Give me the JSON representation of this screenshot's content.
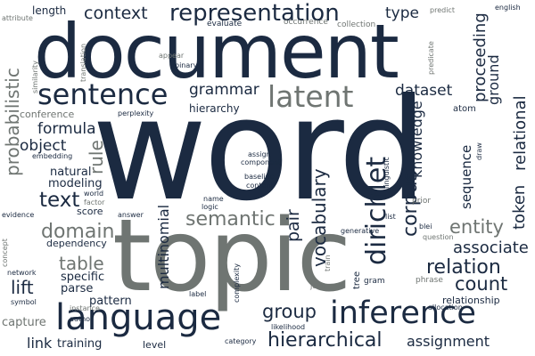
{
  "colors": {
    "dark": "#1b2a41",
    "gray": "#6f7572",
    "background": "#ffffff"
  },
  "words": [
    {
      "text": "word",
      "tone": "dark"
    },
    {
      "text": "topic",
      "tone": "gray"
    },
    {
      "text": "document",
      "tone": "dark"
    },
    {
      "text": "language",
      "tone": "dark"
    },
    {
      "text": "inference",
      "tone": "dark"
    },
    {
      "text": "sentence",
      "tone": "dark"
    },
    {
      "text": "representation",
      "tone": "dark"
    },
    {
      "text": "latent",
      "tone": "gray"
    },
    {
      "text": "dirichlet",
      "tone": "dark"
    },
    {
      "text": "semantic",
      "tone": "gray"
    },
    {
      "text": "hierarchical",
      "tone": "dark"
    },
    {
      "text": "relation",
      "tone": "dark"
    },
    {
      "text": "text",
      "tone": "dark"
    },
    {
      "text": "corpus",
      "tone": "dark"
    },
    {
      "text": "probabilistic",
      "tone": "gray"
    },
    {
      "text": "domain",
      "tone": "gray"
    },
    {
      "text": "vocabulary",
      "tone": "dark"
    },
    {
      "text": "group",
      "tone": "dark"
    },
    {
      "text": "entity",
      "tone": "gray"
    },
    {
      "text": "count",
      "tone": "dark"
    },
    {
      "text": "associate",
      "tone": "dark"
    },
    {
      "text": "context",
      "tone": "dark"
    },
    {
      "text": "dataset",
      "tone": "dark"
    },
    {
      "text": "grammar",
      "tone": "dark"
    },
    {
      "text": "table",
      "tone": "gray"
    },
    {
      "text": "type",
      "tone": "dark"
    },
    {
      "text": "lift",
      "tone": "dark"
    },
    {
      "text": "formula",
      "tone": "dark"
    },
    {
      "text": "object",
      "tone": "dark"
    },
    {
      "text": "rule",
      "tone": "gray"
    },
    {
      "text": "pair",
      "tone": "dark"
    },
    {
      "text": "token",
      "tone": "dark"
    },
    {
      "text": "relational",
      "tone": "dark"
    },
    {
      "text": "proceeding",
      "tone": "dark"
    },
    {
      "text": "ground",
      "tone": "dark"
    },
    {
      "text": "multinomial",
      "tone": "dark"
    },
    {
      "text": "knowledge",
      "tone": "dark"
    },
    {
      "text": "sequence",
      "tone": "dark"
    },
    {
      "text": "assignment",
      "tone": "dark"
    },
    {
      "text": "hierarchy",
      "tone": "dark"
    },
    {
      "text": "natural",
      "tone": "dark"
    },
    {
      "text": "modeling",
      "tone": "dark"
    },
    {
      "text": "specific",
      "tone": "dark"
    },
    {
      "text": "parse",
      "tone": "dark"
    },
    {
      "text": "pattern",
      "tone": "dark"
    },
    {
      "text": "training",
      "tone": "dark"
    },
    {
      "text": "link",
      "tone": "dark"
    },
    {
      "text": "capture",
      "tone": "gray"
    },
    {
      "text": "length",
      "tone": "dark"
    },
    {
      "text": "conference",
      "tone": "gray"
    },
    {
      "text": "dependency",
      "tone": "dark"
    },
    {
      "text": "score",
      "tone": "dark"
    },
    {
      "text": "relationship",
      "tone": "dark"
    },
    {
      "text": "level",
      "tone": "dark"
    },
    {
      "text": "perplexity",
      "tone": "dark"
    },
    {
      "text": "atom",
      "tone": "dark"
    },
    {
      "text": "evaluate",
      "tone": "dark"
    },
    {
      "text": "occurrence",
      "tone": "gray"
    },
    {
      "text": "collection",
      "tone": "gray"
    },
    {
      "text": "predict",
      "tone": "gray"
    },
    {
      "text": "english",
      "tone": "dark"
    },
    {
      "text": "appear",
      "tone": "gray"
    },
    {
      "text": "binary",
      "tone": "dark"
    },
    {
      "text": "attribute",
      "tone": "gray"
    },
    {
      "text": "similarity",
      "tone": "gray"
    },
    {
      "text": "translation",
      "tone": "gray"
    },
    {
      "text": "predicate",
      "tone": "gray"
    },
    {
      "text": "embedding",
      "tone": "dark"
    },
    {
      "text": "world",
      "tone": "dark"
    },
    {
      "text": "factor",
      "tone": "gray"
    },
    {
      "text": "logic",
      "tone": "dark"
    },
    {
      "text": "name",
      "tone": "dark"
    },
    {
      "text": "answer",
      "tone": "dark"
    },
    {
      "text": "evidence",
      "tone": "dark"
    },
    {
      "text": "concept",
      "tone": "gray"
    },
    {
      "text": "network",
      "tone": "dark"
    },
    {
      "text": "symbol",
      "tone": "dark"
    },
    {
      "text": "author",
      "tone": "dark"
    },
    {
      "text": "instance",
      "tone": "gray"
    },
    {
      "text": "category",
      "tone": "dark"
    },
    {
      "text": "likelihood",
      "tone": "dark"
    },
    {
      "text": "allocation",
      "tone": "dark"
    },
    {
      "text": "phrase",
      "tone": "gray"
    },
    {
      "text": "question",
      "tone": "gray"
    },
    {
      "text": "blei",
      "tone": "dark"
    },
    {
      "text": "prior",
      "tone": "gray"
    },
    {
      "text": "list",
      "tone": "dark"
    },
    {
      "text": "generative",
      "tone": "dark"
    },
    {
      "text": "tree",
      "tone": "dark"
    },
    {
      "text": "gram",
      "tone": "dark"
    },
    {
      "text": "joint",
      "tone": "gray"
    },
    {
      "text": "train",
      "tone": "gray"
    },
    {
      "text": "label",
      "tone": "dark"
    },
    {
      "text": "complexity",
      "tone": "dark"
    },
    {
      "text": "assign",
      "tone": "dark"
    },
    {
      "text": "component",
      "tone": "dark"
    },
    {
      "text": "baseline",
      "tone": "dark"
    },
    {
      "text": "content",
      "tone": "dark"
    },
    {
      "text": "draw",
      "tone": "dark"
    },
    {
      "text": "linguistic",
      "tone": "dark"
    }
  ]
}
